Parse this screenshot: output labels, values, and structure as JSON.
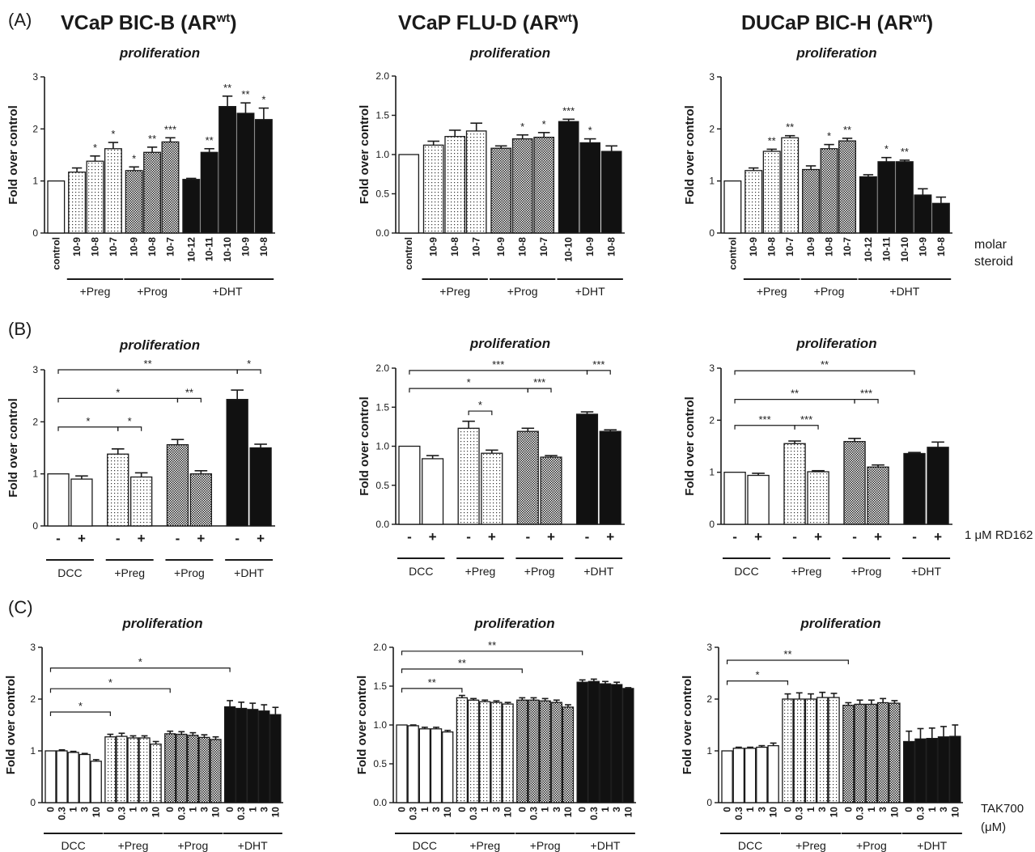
{
  "panel_labels": [
    "(A)",
    "(B)",
    "(C)"
  ],
  "column_titles": [
    {
      "text": "VCaP BIC-B (AR",
      "sup": "wt",
      "close": ")"
    },
    {
      "text": "VCaP  FLU-D (AR",
      "sup": "wt",
      "close": ")"
    },
    {
      "text": "DUCaP BIC-H (AR",
      "sup": "wt",
      "close": ")"
    }
  ],
  "side_labels": {
    "rowA": [
      "molar",
      "steroid"
    ],
    "rowB": [
      "1 μM RD162"
    ],
    "rowC": [
      "TAK700",
      "(μM)"
    ]
  },
  "colors": {
    "black_bar": "#111111",
    "white_bar": "#ffffff",
    "axis": "#1a1a1a"
  },
  "chart_data": [
    {
      "id": "A1",
      "type": "bar",
      "title": "proliferation",
      "ylabel": "Fold over control",
      "ylim": [
        0,
        3
      ],
      "yticks": [
        "0",
        "1",
        "2",
        "3"
      ],
      "categories": [
        "control",
        "10-9",
        "10-8",
        "10-7",
        "10-9",
        "10-8",
        "10-7",
        "10-12",
        "10-11",
        "10-10",
        "10-9",
        "10-8"
      ],
      "groups": [
        {
          "label": "",
          "pattern": "white",
          "start": 0,
          "count": 1,
          "line": false
        },
        {
          "label": "+Preg",
          "pattern": "dots",
          "start": 1,
          "count": 3,
          "line": true
        },
        {
          "label": "+Prog",
          "pattern": "cross",
          "start": 4,
          "count": 3,
          "line": true
        },
        {
          "label": "+DHT",
          "pattern": "black",
          "start": 7,
          "count": 5,
          "line": true
        }
      ],
      "values": [
        1.0,
        1.17,
        1.38,
        1.62,
        1.2,
        1.55,
        1.75,
        1.03,
        1.55,
        2.43,
        2.3,
        2.18
      ],
      "errors": [
        0,
        0.08,
        0.1,
        0.12,
        0.07,
        0.1,
        0.08,
        0.02,
        0.07,
        0.2,
        0.2,
        0.22
      ],
      "annotations": [
        "",
        "",
        "*",
        "*",
        "*",
        "**",
        "***",
        "",
        "**",
        "**",
        "**",
        "*"
      ]
    },
    {
      "id": "A2",
      "type": "bar",
      "title": "proliferation",
      "ylabel": "Fold over control",
      "ylim": [
        0,
        2
      ],
      "yticks": [
        "0.0",
        "0.5",
        "1.0",
        "1.5",
        "2.0"
      ],
      "categories": [
        "control",
        "10-9",
        "10-8",
        "10-7",
        "10-9",
        "10-8",
        "10-7",
        "10-10",
        "10-9",
        "10-8"
      ],
      "groups": [
        {
          "label": "",
          "pattern": "white",
          "start": 0,
          "count": 1,
          "line": false
        },
        {
          "label": "+Preg",
          "pattern": "dots",
          "start": 1,
          "count": 3,
          "line": true
        },
        {
          "label": "+Prog",
          "pattern": "cross",
          "start": 4,
          "count": 3,
          "line": true
        },
        {
          "label": "+DHT",
          "pattern": "black",
          "start": 7,
          "count": 3,
          "line": true
        }
      ],
      "values": [
        1.0,
        1.12,
        1.23,
        1.3,
        1.08,
        1.2,
        1.22,
        1.42,
        1.15,
        1.04
      ],
      "errors": [
        0,
        0.05,
        0.08,
        0.1,
        0.03,
        0.05,
        0.06,
        0.03,
        0.05,
        0.07
      ],
      "annotations": [
        "",
        "",
        "",
        "",
        "",
        "*",
        "*",
        "***",
        "*",
        ""
      ]
    },
    {
      "id": "A3",
      "type": "bar",
      "title": "proliferation",
      "ylabel": "Fold over control",
      "ylim": [
        0,
        3
      ],
      "yticks": [
        "0",
        "1",
        "2",
        "3"
      ],
      "categories": [
        "control",
        "10-9",
        "10-8",
        "10-7",
        "10-9",
        "10-8",
        "10-7",
        "10-12",
        "10-11",
        "10-10",
        "10-9",
        "10-8"
      ],
      "groups": [
        {
          "label": "",
          "pattern": "white",
          "start": 0,
          "count": 1,
          "line": false
        },
        {
          "label": "+Preg",
          "pattern": "dots",
          "start": 1,
          "count": 3,
          "line": true
        },
        {
          "label": "+Prog",
          "pattern": "cross",
          "start": 4,
          "count": 3,
          "line": true
        },
        {
          "label": "+DHT",
          "pattern": "black",
          "start": 7,
          "count": 5,
          "line": true
        }
      ],
      "values": [
        1.0,
        1.2,
        1.57,
        1.83,
        1.22,
        1.62,
        1.77,
        1.08,
        1.37,
        1.37,
        0.73,
        0.57
      ],
      "errors": [
        0,
        0.05,
        0.04,
        0.04,
        0.07,
        0.08,
        0.05,
        0.04,
        0.08,
        0.03,
        0.12,
        0.12
      ],
      "annotations": [
        "",
        "",
        "**",
        "**",
        "",
        "*",
        "**",
        "",
        "*",
        "**",
        "",
        ""
      ]
    },
    {
      "id": "B1",
      "type": "bar",
      "title": "proliferation",
      "ylabel": "Fold over control",
      "ylim": [
        0,
        3
      ],
      "yticks": [
        "0",
        "1",
        "2",
        "3"
      ],
      "categories": [
        "-",
        "+",
        "-",
        "+",
        "-",
        "+",
        "-",
        "+"
      ],
      "groups": [
        {
          "label": "DCC",
          "pattern": "white",
          "start": 0,
          "count": 2,
          "line": true
        },
        {
          "label": "+Preg",
          "pattern": "dots",
          "start": 2,
          "count": 2,
          "line": true
        },
        {
          "label": "+Prog",
          "pattern": "cross",
          "start": 4,
          "count": 2,
          "line": true
        },
        {
          "label": "+DHT",
          "pattern": "black",
          "start": 6,
          "count": 2,
          "line": true
        }
      ],
      "values": [
        1.0,
        0.9,
        1.38,
        0.94,
        1.56,
        1.0,
        2.43,
        1.5
      ],
      "errors": [
        0,
        0.06,
        0.1,
        0.08,
        0.1,
        0.06,
        0.18,
        0.07
      ],
      "annotations": [
        "",
        "",
        "",
        "",
        "",
        "",
        "",
        ""
      ],
      "brackets": [
        {
          "from": 0,
          "to": 6,
          "y": 3.0,
          "text": "**"
        },
        {
          "from": 6,
          "to": 7,
          "y": 3.0,
          "text": "*"
        },
        {
          "from": 0,
          "to": 4,
          "y": 2.45,
          "text": "*"
        },
        {
          "from": 4,
          "to": 5,
          "y": 2.45,
          "text": "**"
        },
        {
          "from": 0,
          "to": 2,
          "y": 1.9,
          "text": "*"
        },
        {
          "from": 2,
          "to": 3,
          "y": 1.9,
          "text": "*"
        }
      ]
    },
    {
      "id": "B2",
      "type": "bar",
      "title": "proliferation",
      "ylabel": "Fold over control",
      "ylim": [
        0,
        2
      ],
      "yticks": [
        "0.0",
        "0.5",
        "1.0",
        "1.5",
        "2.0"
      ],
      "categories": [
        "-",
        "+",
        "-",
        "+",
        "-",
        "+",
        "-",
        "+"
      ],
      "groups": [
        {
          "label": "DCC",
          "pattern": "white",
          "start": 0,
          "count": 2,
          "line": true
        },
        {
          "label": "+Preg",
          "pattern": "dots",
          "start": 2,
          "count": 2,
          "line": true
        },
        {
          "label": "+Prog",
          "pattern": "cross",
          "start": 4,
          "count": 2,
          "line": true
        },
        {
          "label": "+DHT",
          "pattern": "black",
          "start": 6,
          "count": 2,
          "line": true
        }
      ],
      "values": [
        1.0,
        0.84,
        1.23,
        0.91,
        1.19,
        0.86,
        1.41,
        1.19
      ],
      "errors": [
        0,
        0.04,
        0.09,
        0.04,
        0.04,
        0.02,
        0.03,
        0.02
      ],
      "annotations": [
        "",
        "",
        "",
        "",
        "",
        "",
        "",
        ""
      ],
      "brackets": [
        {
          "from": 0,
          "to": 6,
          "y": 1.97,
          "text": "***"
        },
        {
          "from": 6,
          "to": 7,
          "y": 1.97,
          "text": "***"
        },
        {
          "from": 0,
          "to": 4,
          "y": 1.74,
          "text": "*"
        },
        {
          "from": 4,
          "to": 5,
          "y": 1.74,
          "text": "***"
        },
        {
          "from": 2,
          "to": 3,
          "y": 1.45,
          "text": "*"
        }
      ]
    },
    {
      "id": "B3",
      "type": "bar",
      "title": "proliferation",
      "ylabel": "Fold over control",
      "ylim": [
        0,
        3
      ],
      "yticks": [
        "0",
        "1",
        "2",
        "3"
      ],
      "categories": [
        "-",
        "+",
        "-",
        "+",
        "-",
        "+",
        "-",
        "+"
      ],
      "groups": [
        {
          "label": "DCC",
          "pattern": "white",
          "start": 0,
          "count": 2,
          "line": true
        },
        {
          "label": "+Preg",
          "pattern": "dots",
          "start": 2,
          "count": 2,
          "line": true
        },
        {
          "label": "+Prog",
          "pattern": "cross",
          "start": 4,
          "count": 2,
          "line": true
        },
        {
          "label": "+DHT",
          "pattern": "black",
          "start": 6,
          "count": 2,
          "line": true
        }
      ],
      "values": [
        1.0,
        0.94,
        1.55,
        1.01,
        1.59,
        1.1,
        1.36,
        1.48
      ],
      "errors": [
        0,
        0.04,
        0.05,
        0.02,
        0.06,
        0.04,
        0.02,
        0.1
      ],
      "annotations": [
        "",
        "",
        "",
        "",
        "",
        "",
        "",
        ""
      ],
      "brackets": [
        {
          "from": 0,
          "to": 6,
          "y": 2.95,
          "text": "**"
        },
        {
          "from": 0,
          "to": 4,
          "y": 2.4,
          "text": "**"
        },
        {
          "from": 4,
          "to": 5,
          "y": 2.4,
          "text": "***"
        },
        {
          "from": 0,
          "to": 2,
          "y": 1.9,
          "text": "***"
        },
        {
          "from": 2,
          "to": 3,
          "y": 1.9,
          "text": "***"
        }
      ]
    },
    {
      "id": "C1",
      "type": "bar",
      "title": "proliferation",
      "ylabel": "Fold over control",
      "ylim": [
        0,
        3
      ],
      "yticks": [
        "0",
        "1",
        "2",
        "3"
      ],
      "categories": [
        "0",
        "0.3",
        "1",
        "3",
        "10",
        "0",
        "0.3",
        "1",
        "3",
        "10",
        "0",
        "0.3",
        "1",
        "3",
        "10",
        "0",
        "0.3",
        "1",
        "3",
        "10"
      ],
      "groups": [
        {
          "label": "DCC",
          "pattern": "white",
          "start": 0,
          "count": 5,
          "line": true
        },
        {
          "label": "+Preg",
          "pattern": "dots",
          "start": 5,
          "count": 5,
          "line": true
        },
        {
          "label": "+Prog",
          "pattern": "cross",
          "start": 10,
          "count": 5,
          "line": true
        },
        {
          "label": "+DHT",
          "pattern": "black",
          "start": 15,
          "count": 5,
          "line": true
        }
      ],
      "values": [
        1.0,
        1.0,
        0.97,
        0.93,
        0.8,
        1.27,
        1.28,
        1.25,
        1.25,
        1.13,
        1.33,
        1.32,
        1.3,
        1.26,
        1.22,
        1.85,
        1.82,
        1.8,
        1.77,
        1.7
      ],
      "errors": [
        0,
        0.02,
        0.02,
        0.02,
        0.03,
        0.05,
        0.06,
        0.04,
        0.04,
        0.05,
        0.05,
        0.05,
        0.05,
        0.05,
        0.05,
        0.12,
        0.12,
        0.12,
        0.12,
        0.14
      ],
      "annotations": [],
      "brackets": [
        {
          "from": 0,
          "to": 15,
          "y": 2.6,
          "text": "*"
        },
        {
          "from": 0,
          "to": 10,
          "y": 2.2,
          "text": "*"
        },
        {
          "from": 0,
          "to": 5,
          "y": 1.75,
          "text": "*"
        }
      ]
    },
    {
      "id": "C2",
      "type": "bar",
      "title": "proliferation",
      "ylabel": "Fold over control",
      "ylim": [
        0,
        2
      ],
      "yticks": [
        "0.0",
        "0.5",
        "1.0",
        "1.5",
        "2.0"
      ],
      "categories": [
        "0",
        "0.3",
        "1",
        "3",
        "10",
        "0",
        "0.3",
        "1",
        "3",
        "10",
        "0",
        "0.3",
        "1",
        "3",
        "10",
        "0",
        "0.3",
        "1",
        "3",
        "10"
      ],
      "groups": [
        {
          "label": "DCC",
          "pattern": "white",
          "start": 0,
          "count": 5,
          "line": true
        },
        {
          "label": "+Preg",
          "pattern": "dots",
          "start": 5,
          "count": 5,
          "line": true
        },
        {
          "label": "+Prog",
          "pattern": "cross",
          "start": 10,
          "count": 5,
          "line": true
        },
        {
          "label": "+DHT",
          "pattern": "black",
          "start": 15,
          "count": 5,
          "line": true
        }
      ],
      "values": [
        1.0,
        0.99,
        0.95,
        0.95,
        0.91,
        1.35,
        1.32,
        1.3,
        1.29,
        1.27,
        1.32,
        1.32,
        1.31,
        1.29,
        1.23,
        1.55,
        1.56,
        1.53,
        1.52,
        1.47
      ],
      "errors": [
        0,
        0.01,
        0.02,
        0.02,
        0.02,
        0.03,
        0.02,
        0.02,
        0.02,
        0.02,
        0.03,
        0.03,
        0.03,
        0.03,
        0.03,
        0.03,
        0.03,
        0.03,
        0.03,
        0.01
      ],
      "annotations": [],
      "brackets": [
        {
          "from": 0,
          "to": 15,
          "y": 1.95,
          "text": "**"
        },
        {
          "from": 0,
          "to": 10,
          "y": 1.72,
          "text": "**"
        },
        {
          "from": 0,
          "to": 5,
          "y": 1.47,
          "text": "**"
        }
      ]
    },
    {
      "id": "C3",
      "type": "bar",
      "title": "proliferation",
      "ylabel": "Fold over control",
      "ylim": [
        0,
        3
      ],
      "yticks": [
        "0",
        "1",
        "2",
        "3"
      ],
      "categories": [
        "0",
        "0.3",
        "1",
        "3",
        "10",
        "0",
        "0.3",
        "1",
        "3",
        "10",
        "0",
        "0.3",
        "1",
        "3",
        "10",
        "0",
        "0.3",
        "1",
        "3",
        "10"
      ],
      "groups": [
        {
          "label": "DCC",
          "pattern": "white",
          "start": 0,
          "count": 5,
          "line": true
        },
        {
          "label": "+Preg",
          "pattern": "dots",
          "start": 5,
          "count": 5,
          "line": true
        },
        {
          "label": "+Prog",
          "pattern": "cross",
          "start": 10,
          "count": 5,
          "line": true
        },
        {
          "label": "+DHT",
          "pattern": "black",
          "start": 15,
          "count": 5,
          "line": true
        }
      ],
      "values": [
        1.0,
        1.05,
        1.05,
        1.07,
        1.1,
        2.0,
        2.0,
        2.0,
        2.03,
        2.03,
        1.88,
        1.9,
        1.9,
        1.93,
        1.92,
        1.18,
        1.23,
        1.24,
        1.27,
        1.28
      ],
      "errors": [
        0,
        0.02,
        0.02,
        0.03,
        0.05,
        0.1,
        0.12,
        0.1,
        0.1,
        0.08,
        0.05,
        0.08,
        0.08,
        0.08,
        0.05,
        0.2,
        0.2,
        0.2,
        0.2,
        0.22
      ],
      "annotations": [],
      "brackets": [
        {
          "from": 0,
          "to": 10,
          "y": 2.75,
          "text": "**"
        },
        {
          "from": 0,
          "to": 5,
          "y": 2.35,
          "text": "*"
        }
      ]
    }
  ]
}
